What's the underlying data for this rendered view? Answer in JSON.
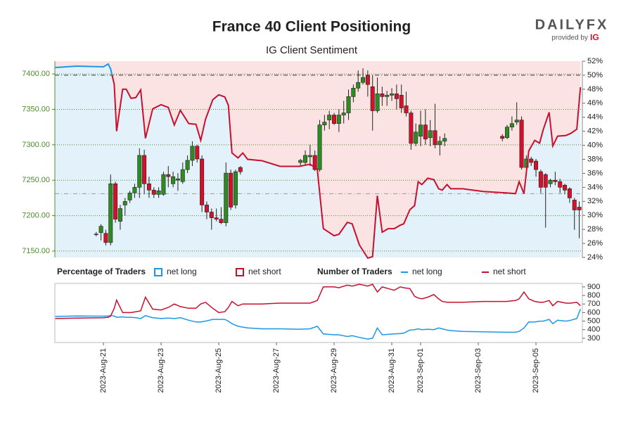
{
  "branding": {
    "logo": "DAILYFX",
    "provided_by": "provided by",
    "ig": "IG"
  },
  "chart_data": [
    {
      "type": "candlestick",
      "title": "France 40 Client Positioning",
      "subtitle": "IG Client Sentiment",
      "xlim": [
        "2023-08-19 07:36",
        "2023-09-06 14:36"
      ],
      "ylim": [
        7141,
        7418
      ],
      "yticks": [
        {
          "value": 7150,
          "label": "7150.00"
        },
        {
          "value": 7200,
          "label": "7200.00"
        },
        {
          "value": 7250,
          "label": "7250.00"
        },
        {
          "value": 7300,
          "label": "7300.00"
        },
        {
          "value": 7350,
          "label": "7350.00"
        },
        {
          "value": 7400,
          "label": "7400.00"
        }
      ],
      "y2lim": [
        24,
        52
      ],
      "y2ticks": [
        {
          "value": 24,
          "label": "24%"
        },
        {
          "value": 26,
          "label": "26%"
        },
        {
          "value": 28,
          "label": "28%"
        },
        {
          "value": 30,
          "label": "30%"
        },
        {
          "value": 32,
          "label": "32%"
        },
        {
          "value": 34,
          "label": "34%"
        },
        {
          "value": 36,
          "label": "36%"
        },
        {
          "value": 38,
          "label": "38%"
        },
        {
          "value": 40,
          "label": "40%"
        },
        {
          "value": 42,
          "label": "42%"
        },
        {
          "value": 44,
          "label": "44%"
        },
        {
          "value": 46,
          "label": "46%"
        },
        {
          "value": 48,
          "label": "48%"
        },
        {
          "value": 50,
          "label": "50%"
        },
        {
          "value": 52,
          "label": "52%"
        }
      ],
      "grid": true,
      "up_color": "#2e8b22",
      "down_color": "#d3112b",
      "axis_color": "#4c8c2b",
      "hlines": [
        {
          "axis": "y2",
          "value": 50,
          "color": "#333333"
        },
        {
          "axis": "y",
          "value": 7231,
          "color": "#999999"
        }
      ],
      "x": [
        "2023-08-20 18:00",
        "2023-08-20 22:00",
        "2023-08-21 02:00",
        "2023-08-21 06:00",
        "2023-08-21 10:00",
        "2023-08-21 14:00",
        "2023-08-21 18:00",
        "2023-08-21 22:00",
        "2023-08-22 02:00",
        "2023-08-22 06:00",
        "2023-08-22 10:00",
        "2023-08-22 14:00",
        "2023-08-22 18:00",
        "2023-08-22 22:00",
        "2023-08-23 02:00",
        "2023-08-23 06:00",
        "2023-08-23 10:00",
        "2023-08-23 14:00",
        "2023-08-23 18:00",
        "2023-08-23 22:00",
        "2023-08-24 02:00",
        "2023-08-24 06:00",
        "2023-08-24 10:00",
        "2023-08-24 14:00",
        "2023-08-24 18:00",
        "2023-08-24 22:00",
        "2023-08-25 02:00",
        "2023-08-25 06:00",
        "2023-08-25 10:00",
        "2023-08-25 14:00",
        "2023-08-25 18:00",
        "2023-08-27 20:00",
        "2023-08-28 00:00",
        "2023-08-28 04:00",
        "2023-08-28 08:00",
        "2023-08-28 12:00",
        "2023-08-28 16:00",
        "2023-08-28 20:00",
        "2023-08-29 00:00",
        "2023-08-29 04:00",
        "2023-08-29 08:00",
        "2023-08-29 12:00",
        "2023-08-29 16:00",
        "2023-08-29 20:00",
        "2023-08-30 00:00",
        "2023-08-30 04:00",
        "2023-08-30 08:00",
        "2023-08-30 12:00",
        "2023-08-30 16:00",
        "2023-08-30 20:00",
        "2023-08-31 00:00",
        "2023-08-31 04:00",
        "2023-08-31 08:00",
        "2023-08-31 12:00",
        "2023-08-31 16:00",
        "2023-08-31 20:00",
        "2023-09-01 00:00",
        "2023-09-01 04:00",
        "2023-09-01 08:00",
        "2023-09-01 12:00",
        "2023-09-01 16:00",
        "2023-09-01 20:00",
        "2023-09-03 20:00",
        "2023-09-04 00:00",
        "2023-09-04 04:00",
        "2023-09-04 08:00",
        "2023-09-04 12:00",
        "2023-09-04 16:00",
        "2023-09-04 20:00",
        "2023-09-05 00:00",
        "2023-09-05 04:00",
        "2023-09-05 08:00",
        "2023-09-05 12:00",
        "2023-09-05 16:00",
        "2023-09-05 20:00",
        "2023-09-06 00:00",
        "2023-09-06 04:00",
        "2023-09-06 08:00",
        "2023-09-06 12:00"
      ],
      "open": [
        7173,
        7176,
        7175,
        7162,
        7245,
        7192,
        7215,
        7222,
        7232,
        7240,
        7285,
        7245,
        7236,
        7230,
        7230,
        7258,
        7245,
        7250,
        7248,
        7265,
        7278,
        7298,
        7280,
        7215,
        7205,
        7197,
        7195,
        7190,
        7260,
        7215,
        7268,
        7275,
        7275,
        7283,
        7285,
        7265,
        7328,
        7335,
        7342,
        7330,
        7342,
        7345,
        7368,
        7380,
        7388,
        7398,
        7382,
        7348,
        7372,
        7368,
        7370,
        7372,
        7370,
        7355,
        7345,
        7302,
        7312,
        7328,
        7310,
        7320,
        7300,
        7305,
        7312,
        7310,
        7325,
        7332,
        7335,
        7268,
        7280,
        7277,
        7262,
        7258,
        7245,
        7250,
        7248,
        7243,
        7238,
        7222,
        7212
      ],
      "high": [
        7177,
        7188,
        7180,
        7258,
        7248,
        7215,
        7225,
        7235,
        7245,
        7295,
        7293,
        7255,
        7240,
        7240,
        7262,
        7270,
        7262,
        7260,
        7275,
        7285,
        7305,
        7300,
        7285,
        7220,
        7210,
        7210,
        7212,
        7275,
        7265,
        7265,
        7270,
        7280,
        7292,
        7300,
        7292,
        7335,
        7342,
        7348,
        7345,
        7350,
        7362,
        7378,
        7385,
        7405,
        7408,
        7405,
        7398,
        7395,
        7382,
        7376,
        7380,
        7385,
        7385,
        7375,
        7348,
        7330,
        7348,
        7350,
        7335,
        7358,
        7312,
        7316,
        7315,
        7328,
        7340,
        7360,
        7340,
        7285,
        7283,
        7280,
        7265,
        7260,
        7252,
        7262,
        7252,
        7245,
        7240,
        7225,
        7220
      ],
      "low": [
        7171,
        7165,
        7158,
        7158,
        7190,
        7180,
        7200,
        7218,
        7225,
        7225,
        7230,
        7225,
        7225,
        7225,
        7228,
        7240,
        7240,
        7235,
        7245,
        7260,
        7270,
        7275,
        7205,
        7195,
        7180,
        7192,
        7188,
        7185,
        7208,
        7210,
        7258,
        7270,
        7272,
        7270,
        7263,
        7262,
        7320,
        7322,
        7328,
        7318,
        7330,
        7335,
        7360,
        7375,
        7385,
        7368,
        7320,
        7345,
        7355,
        7355,
        7362,
        7350,
        7345,
        7340,
        7293,
        7298,
        7298,
        7300,
        7298,
        7295,
        7285,
        7298,
        7305,
        7308,
        7320,
        7328,
        7265,
        7265,
        7270,
        7255,
        7232,
        7183,
        7240,
        7243,
        7232,
        7230,
        7218,
        7180,
        7168
      ],
      "close": [
        7174,
        7185,
        7162,
        7245,
        7195,
        7210,
        7220,
        7232,
        7240,
        7285,
        7245,
        7236,
        7230,
        7235,
        7258,
        7255,
        7255,
        7252,
        7265,
        7278,
        7298,
        7280,
        7215,
        7205,
        7197,
        7195,
        7190,
        7260,
        7212,
        7262,
        7262,
        7278,
        7285,
        7285,
        7265,
        7328,
        7332,
        7342,
        7330,
        7342,
        7345,
        7368,
        7380,
        7388,
        7395,
        7385,
        7348,
        7372,
        7368,
        7370,
        7372,
        7365,
        7352,
        7345,
        7302,
        7318,
        7328,
        7308,
        7320,
        7300,
        7305,
        7309,
        7309,
        7325,
        7330,
        7335,
        7268,
        7280,
        7275,
        7265,
        7240,
        7240,
        7250,
        7248,
        7240,
        7236,
        7225,
        7208,
        7208
      ],
      "areas": [
        {
          "name": "net long",
          "color": "#1e96e6",
          "fill": "#e2f1fa"
        },
        {
          "name": "net short",
          "color": "#c8102e",
          "fill": "#fbe3e3"
        }
      ],
      "sentiment": {
        "axis": "y2",
        "x": [
          "2023-08-19 08:00",
          "2023-08-20 02:00",
          "2023-08-21 00:00",
          "2023-08-21 04:00",
          "2023-08-21 06:00",
          "2023-08-21 09:00",
          "2023-08-21 11:00",
          "2023-08-21 16:00",
          "2023-08-21 19:00",
          "2023-08-21 23:00",
          "2023-08-22 03:00",
          "2023-08-22 07:00",
          "2023-08-22 11:00",
          "2023-08-22 17:00",
          "2023-08-23 00:00",
          "2023-08-23 06:00",
          "2023-08-23 11:00",
          "2023-08-23 16:00",
          "2023-08-23 23:00",
          "2023-08-24 05:00",
          "2023-08-24 09:00",
          "2023-08-24 13:00",
          "2023-08-24 19:00",
          "2023-08-25 00:00",
          "2023-08-25 05:00",
          "2023-08-25 08:00",
          "2023-08-25 11:00",
          "2023-08-25 16:00",
          "2023-08-25 20:00",
          "2023-08-26 00:00",
          "2023-08-26 12:00",
          "2023-08-27 03:00",
          "2023-08-27 19:00",
          "2023-08-28 04:00",
          "2023-08-28 10:00",
          "2023-08-28 15:00",
          "2023-08-29 00:00",
          "2023-08-29 04:00",
          "2023-08-29 11:00",
          "2023-08-29 15:00",
          "2023-08-29 21:00",
          "2023-08-30 04:00",
          "2023-08-30 08:00",
          "2023-08-30 12:00",
          "2023-08-30 16:00",
          "2023-08-30 21:00",
          "2023-08-31 02:00",
          "2023-08-31 07:00",
          "2023-08-31 10:00",
          "2023-08-31 15:00",
          "2023-08-31 19:00",
          "2023-08-31 22:00",
          "2023-09-01 01:00",
          "2023-09-01 06:00",
          "2023-09-01 11:00",
          "2023-09-01 15:00",
          "2023-09-01 18:00",
          "2023-09-01 22:00",
          "2023-09-02 01:00",
          "2023-09-02 11:00",
          "2023-09-03 04:00",
          "2023-09-03 23:00",
          "2023-09-04 07:00",
          "2023-09-04 10:00",
          "2023-09-04 14:00",
          "2023-09-04 18:00",
          "2023-09-04 23:00",
          "2023-09-05 03:00",
          "2023-09-05 06:00",
          "2023-09-05 11:00",
          "2023-09-05 14:00",
          "2023-09-05 18:00",
          "2023-09-06 01:00",
          "2023-09-06 05:00",
          "2023-09-06 10:00",
          "2023-09-06 13:00"
        ],
        "values": [
          51.1,
          51.3,
          51.2,
          51.6,
          50.9,
          48.7,
          42.0,
          48.0,
          48.0,
          46.7,
          46.8,
          47.9,
          41.0,
          45.2,
          45.8,
          45.4,
          42.9,
          45.0,
          43.1,
          43.0,
          40.7,
          43.7,
          46.5,
          47.2,
          46.9,
          45.7,
          38.9,
          38.2,
          38.9,
          38.0,
          37.8,
          37.0,
          37.0,
          37.3,
          36.6,
          28.1,
          27.1,
          27.3,
          29.0,
          28.8,
          25.8,
          23.9,
          24.1,
          32.8,
          27.6,
          28.1,
          28.1,
          28.6,
          28.8,
          30.8,
          31.4,
          34.8,
          34.4,
          35.3,
          35.1,
          33.8,
          33.6,
          34.4,
          33.8,
          33.8,
          33.4,
          33.2,
          33.1,
          34.8,
          33.1,
          39.2,
          40.7,
          40.3,
          42.2,
          44.7,
          39.9,
          41.3,
          41.4,
          41.7,
          42.3,
          48.3
        ]
      }
    },
    {
      "type": "line",
      "xlim": [
        "2023-08-19 07:36",
        "2023-09-06 14:36"
      ],
      "ylim": [
        250,
        940
      ],
      "yticks": [
        300,
        400,
        500,
        600,
        700,
        800,
        900
      ],
      "xticks": [
        {
          "value": "2023-08-21",
          "label": "2023-Aug-21"
        },
        {
          "value": "2023-08-23",
          "label": "2023-Aug-23"
        },
        {
          "value": "2023-08-25",
          "label": "2023-Aug-25"
        },
        {
          "value": "2023-08-27",
          "label": "2023-Aug-27"
        },
        {
          "value": "2023-08-29",
          "label": "2023-Aug-29"
        },
        {
          "value": "2023-08-31",
          "label": "2023-Aug-31"
        },
        {
          "value": "2023-09-01",
          "label": "2023-Sep-01"
        },
        {
          "value": "2023-09-03",
          "label": "2023-Sep-03"
        },
        {
          "value": "2023-09-05",
          "label": "2023-Sep-05"
        }
      ],
      "legend": {
        "percentage_title": "Percentage of Traders",
        "number_title": "Number of Traders"
      },
      "x": [
        "2023-08-19 08:00",
        "2023-08-20 02:00",
        "2023-08-21 00:00",
        "2023-08-21 04:00",
        "2023-08-21 06:00",
        "2023-08-21 09:00",
        "2023-08-21 11:00",
        "2023-08-21 16:00",
        "2023-08-21 19:00",
        "2023-08-21 23:00",
        "2023-08-22 03:00",
        "2023-08-22 07:00",
        "2023-08-22 11:00",
        "2023-08-22 17:00",
        "2023-08-23 00:00",
        "2023-08-23 06:00",
        "2023-08-23 11:00",
        "2023-08-23 16:00",
        "2023-08-23 23:00",
        "2023-08-24 05:00",
        "2023-08-24 09:00",
        "2023-08-24 13:00",
        "2023-08-24 19:00",
        "2023-08-25 00:00",
        "2023-08-25 05:00",
        "2023-08-25 08:00",
        "2023-08-25 11:00",
        "2023-08-25 16:00",
        "2023-08-25 20:00",
        "2023-08-26 00:00",
        "2023-08-26 12:00",
        "2023-08-27 03:00",
        "2023-08-27 19:00",
        "2023-08-28 04:00",
        "2023-08-28 10:00",
        "2023-08-28 15:00",
        "2023-08-29 00:00",
        "2023-08-29 04:00",
        "2023-08-29 11:00",
        "2023-08-29 15:00",
        "2023-08-29 21:00",
        "2023-08-30 04:00",
        "2023-08-30 08:00",
        "2023-08-30 12:00",
        "2023-08-30 16:00",
        "2023-08-30 21:00",
        "2023-08-31 02:00",
        "2023-08-31 07:00",
        "2023-08-31 10:00",
        "2023-08-31 15:00",
        "2023-08-31 19:00",
        "2023-08-31 22:00",
        "2023-09-01 01:00",
        "2023-09-01 06:00",
        "2023-09-01 11:00",
        "2023-09-01 15:00",
        "2023-09-01 18:00",
        "2023-09-01 22:00",
        "2023-09-02 01:00",
        "2023-09-02 11:00",
        "2023-09-03 04:00",
        "2023-09-03 23:00",
        "2023-09-04 07:00",
        "2023-09-04 10:00",
        "2023-09-04 14:00",
        "2023-09-04 18:00",
        "2023-09-04 23:00",
        "2023-09-05 03:00",
        "2023-09-05 06:00",
        "2023-09-05 11:00",
        "2023-09-05 14:00",
        "2023-09-05 18:00",
        "2023-09-06 01:00",
        "2023-09-06 05:00",
        "2023-09-06 10:00",
        "2023-09-06 13:00"
      ],
      "series": [
        {
          "name": "net long",
          "color": "#1e96e6",
          "values": [
            555,
            560,
            558,
            560,
            565,
            560,
            545,
            550,
            545,
            545,
            540,
            530,
            565,
            540,
            530,
            535,
            530,
            540,
            510,
            490,
            490,
            500,
            520,
            520,
            520,
            500,
            470,
            440,
            430,
            420,
            410,
            410,
            405,
            410,
            440,
            350,
            340,
            340,
            320,
            330,
            310,
            290,
            300,
            420,
            340,
            345,
            350,
            355,
            360,
            395,
            400,
            410,
            400,
            405,
            400,
            420,
            410,
            395,
            390,
            380,
            375,
            370,
            370,
            380,
            420,
            490,
            490,
            500,
            500,
            520,
            470,
            510,
            500,
            510,
            530,
            640
          ]
        },
        {
          "name": "net short",
          "color": "#c8102e",
          "values": [
            530,
            535,
            540,
            545,
            560,
            650,
            745,
            600,
            600,
            600,
            610,
            620,
            780,
            640,
            630,
            660,
            700,
            670,
            650,
            650,
            700,
            720,
            650,
            600,
            610,
            660,
            730,
            680,
            700,
            700,
            700,
            710,
            710,
            710,
            740,
            900,
            900,
            890,
            920,
            910,
            930,
            910,
            930,
            840,
            900,
            880,
            860,
            900,
            890,
            880,
            790,
            770,
            760,
            780,
            810,
            760,
            730,
            720,
            720,
            720,
            730,
            730,
            740,
            760,
            840,
            760,
            730,
            720,
            720,
            740,
            680,
            730,
            710,
            710,
            720,
            680
          ]
        }
      ]
    }
  ]
}
